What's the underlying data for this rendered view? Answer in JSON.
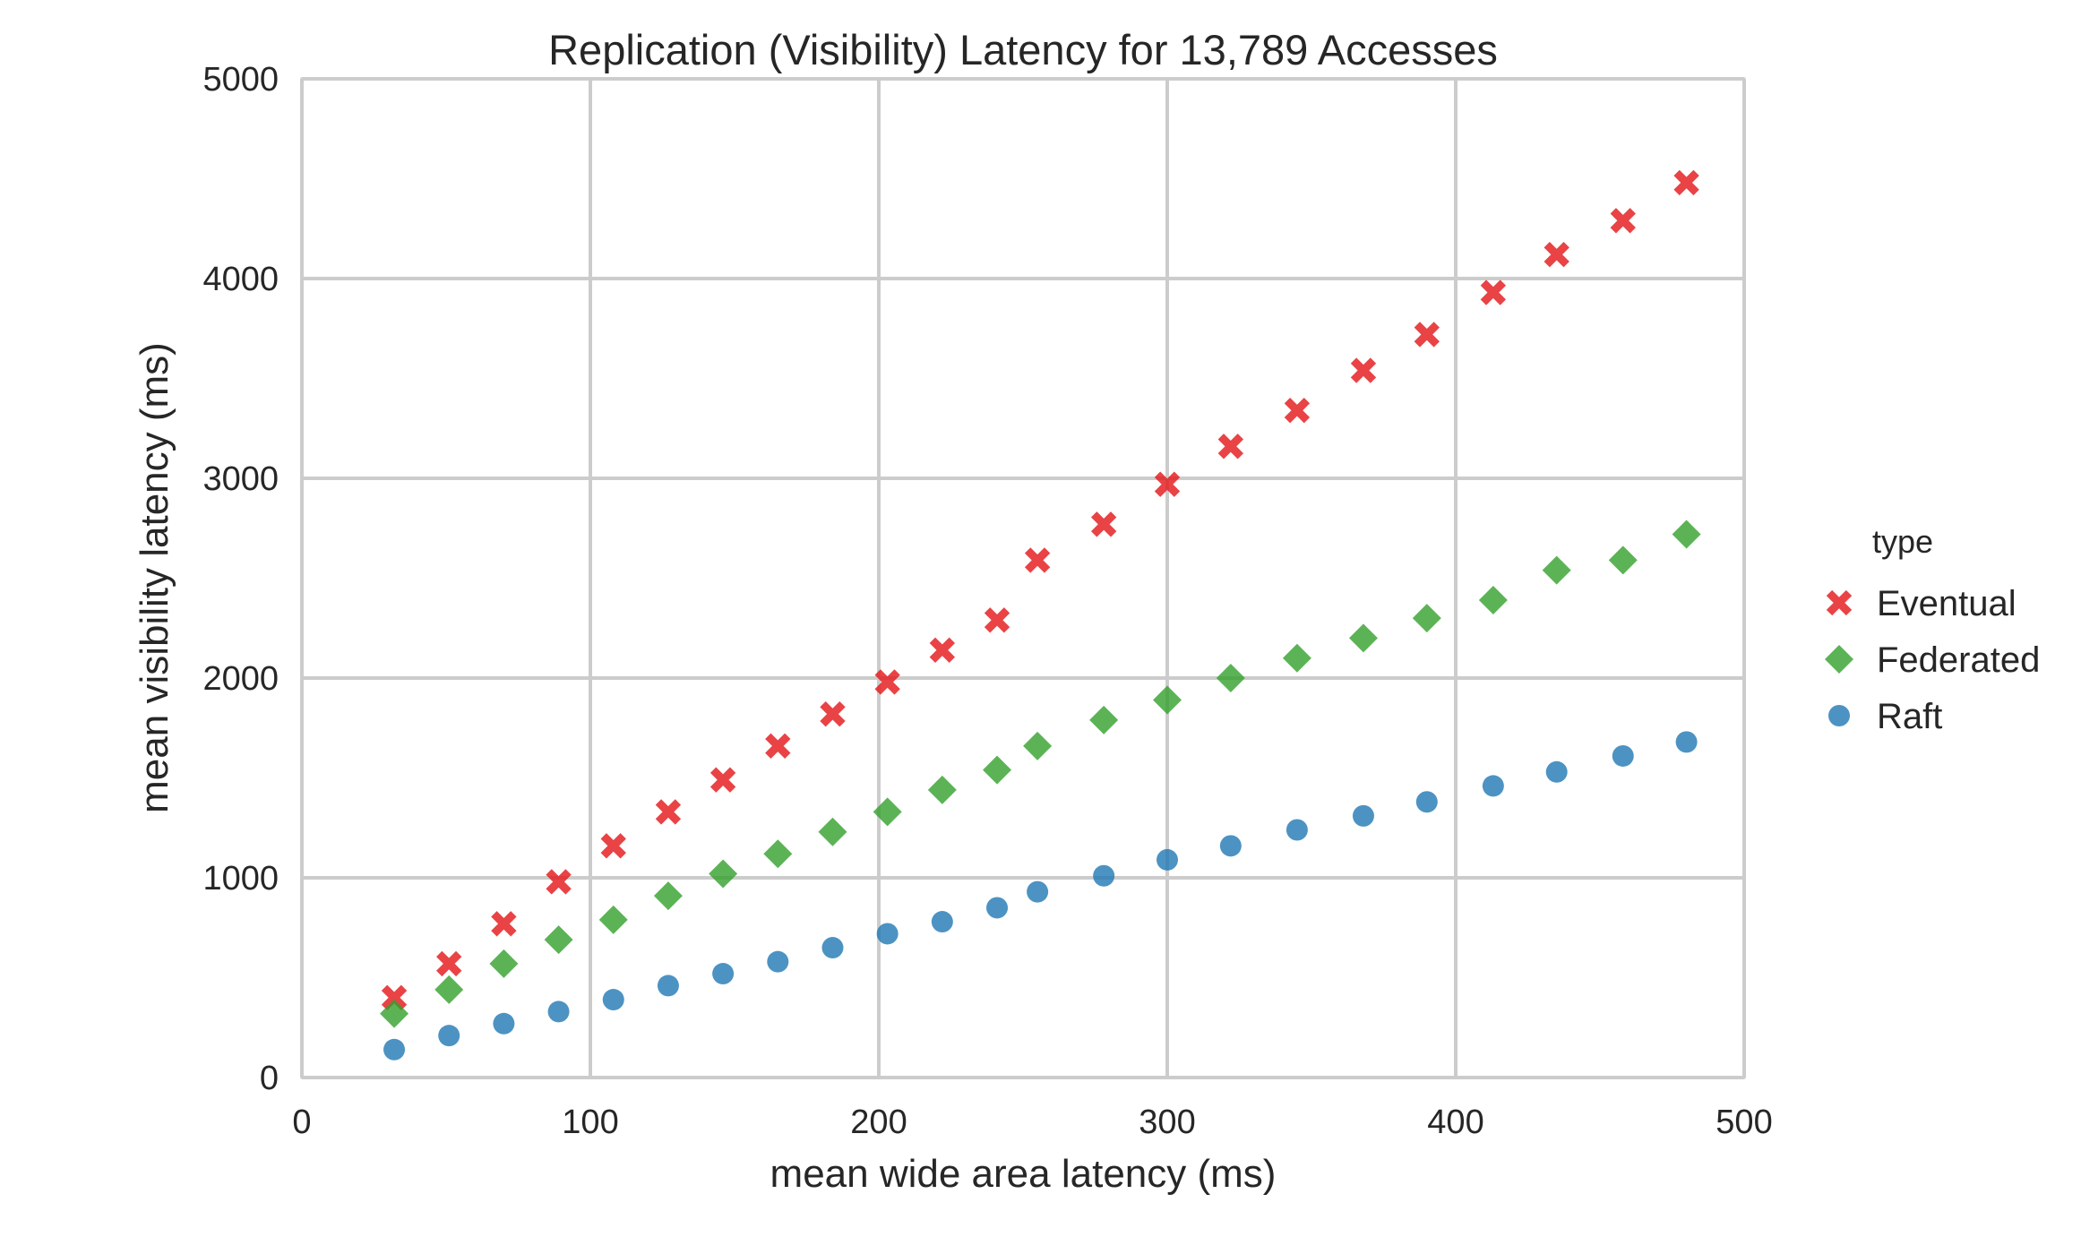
{
  "chart_data": {
    "type": "scatter",
    "title": "Replication (Visibility) Latency for 13,789 Accesses",
    "xlabel": "mean wide area latency (ms)",
    "ylabel": "mean visibility latency (ms)",
    "xlim": [
      0,
      500
    ],
    "ylim": [
      0,
      5000
    ],
    "xticks": [
      "0",
      "100",
      "200",
      "300",
      "400",
      "500"
    ],
    "yticks": [
      "0",
      "1000",
      "2000",
      "3000",
      "4000",
      "5000"
    ],
    "grid": true,
    "legend": {
      "title": "type",
      "placement": "right",
      "entries": [
        "Eventual",
        "Federated",
        "Raft"
      ]
    },
    "x": [
      32,
      51,
      70,
      89,
      108,
      127,
      146,
      165,
      184,
      203,
      222,
      241,
      255,
      278,
      300,
      322,
      345,
      368,
      390,
      413,
      435,
      458,
      480
    ],
    "series": [
      {
        "name": "Eventual",
        "marker": "x",
        "color": "#e41a1c",
        "values": [
          400,
          570,
          770,
          980,
          1160,
          1330,
          1490,
          1660,
          1820,
          1980,
          2140,
          2290,
          2590,
          2770,
          2970,
          3160,
          3340,
          3540,
          3720,
          3930,
          4120,
          4290,
          4480
        ]
      },
      {
        "name": "Federated",
        "marker": "diamond",
        "color": "#33a02c",
        "values": [
          320,
          440,
          570,
          690,
          790,
          910,
          1020,
          1120,
          1230,
          1330,
          1440,
          1540,
          1660,
          1790,
          1890,
          2000,
          2100,
          2200,
          2300,
          2390,
          2540,
          2590,
          2720
        ]
      },
      {
        "name": "Raft",
        "marker": "circle",
        "color": "#1f78b4",
        "values": [
          140,
          210,
          270,
          330,
          390,
          460,
          520,
          580,
          650,
          720,
          780,
          850,
          930,
          1010,
          1090,
          1160,
          1240,
          1310,
          1380,
          1460,
          1530,
          1610,
          1680
        ]
      }
    ]
  }
}
